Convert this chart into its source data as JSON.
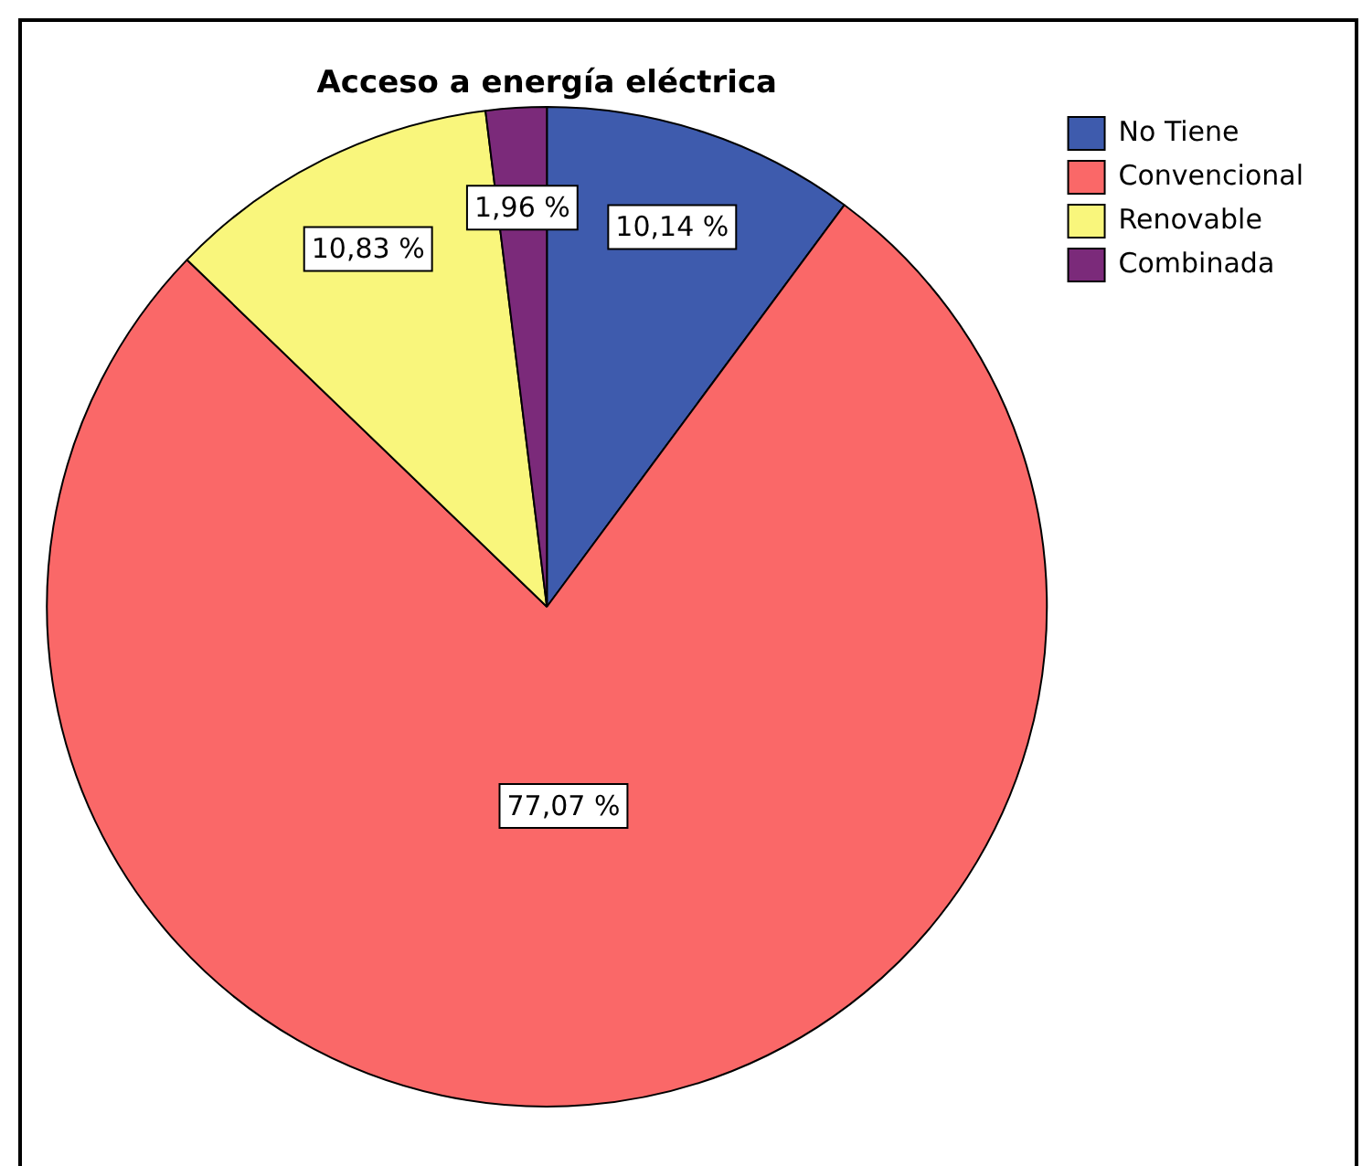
{
  "chart_data": {
    "type": "pie",
    "title": "Acceso a energía eléctrica",
    "categories": [
      "No Tiene",
      "Convencional",
      "Renovable",
      "Combinada"
    ],
    "values": [
      10.14,
      77.07,
      10.83,
      1.96
    ],
    "colors": [
      "#3e5bad",
      "#fa6868",
      "#f9f67c",
      "#7b2a7a"
    ],
    "value_labels": [
      "10,14 %",
      "77,07 %",
      "10,83 %",
      "1,96 %"
    ],
    "legend": "top right"
  }
}
